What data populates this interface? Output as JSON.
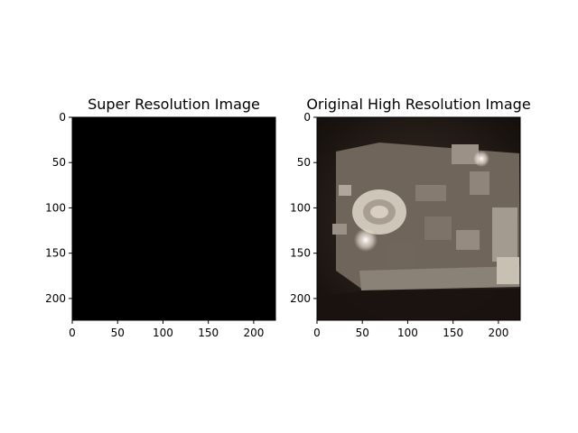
{
  "chart_data": [
    {
      "type": "image",
      "title": "Super Resolution Image",
      "content": "solid black",
      "fill_color": "#000000",
      "xlim": [
        0,
        224
      ],
      "ylim": [
        224,
        0
      ],
      "xticks": [
        0,
        50,
        100,
        150,
        200
      ],
      "yticks": [
        0,
        50,
        100,
        150,
        200
      ]
    },
    {
      "type": "image",
      "title": "Original High Resolution Image",
      "content": "photograph of an architectural site model (stadium and surrounding buildings) on a dark background",
      "xlim": [
        0,
        224
      ],
      "ylim": [
        224,
        0
      ],
      "xticks": [
        0,
        50,
        100,
        150,
        200
      ],
      "yticks": [
        0,
        50,
        100,
        150,
        200
      ]
    }
  ]
}
